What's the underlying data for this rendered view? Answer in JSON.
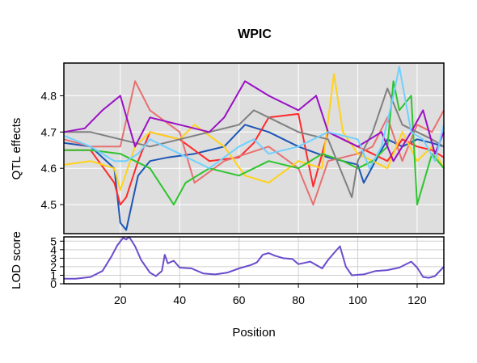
{
  "chart_data": {
    "type": "line",
    "title": "WPIC",
    "xlabel": "Position",
    "xlim": [
      1,
      129
    ],
    "x_ticks": [
      20,
      40,
      60,
      80,
      100,
      120
    ],
    "top_panel": {
      "ylabel": "QTL effects",
      "ylim": [
        4.42,
        4.89
      ],
      "y_ticks": [
        4.5,
        4.6,
        4.7,
        4.8
      ],
      "background": "#dedede",
      "grid": true,
      "series": [
        {
          "color": "#1c56b5",
          "x": [
            1,
            10,
            18,
            20,
            22,
            26,
            30,
            36,
            45,
            55,
            62,
            70,
            80,
            90,
            100,
            102,
            106,
            110,
            115,
            120,
            125,
            129
          ],
          "y": [
            4.67,
            4.66,
            4.6,
            4.45,
            4.43,
            4.58,
            4.62,
            4.63,
            4.64,
            4.66,
            4.72,
            4.7,
            4.66,
            4.63,
            4.61,
            4.56,
            4.62,
            4.68,
            4.66,
            4.68,
            4.67,
            4.66
          ]
        },
        {
          "color": "#ff2a2a",
          "x": [
            1,
            10,
            18,
            20,
            22,
            26,
            30,
            40,
            50,
            60,
            65,
            70,
            80,
            85,
            90,
            95,
            100,
            105,
            110,
            115,
            120,
            125,
            129
          ],
          "y": [
            4.65,
            4.65,
            4.56,
            4.5,
            4.52,
            4.62,
            4.7,
            4.68,
            4.62,
            4.63,
            4.67,
            4.74,
            4.75,
            4.55,
            4.7,
            4.68,
            4.66,
            4.64,
            4.62,
            4.68,
            4.66,
            4.65,
            4.63
          ]
        },
        {
          "color": "#e87070",
          "x": [
            1,
            10,
            20,
            25,
            30,
            40,
            45,
            55,
            70,
            80,
            85,
            90,
            100,
            105,
            110,
            115,
            120,
            125,
            129
          ],
          "y": [
            4.68,
            4.66,
            4.66,
            4.84,
            4.76,
            4.7,
            4.56,
            4.62,
            4.66,
            4.6,
            4.5,
            4.62,
            4.64,
            4.66,
            4.74,
            4.62,
            4.72,
            4.7,
            4.76
          ]
        },
        {
          "color": "#ffd21a",
          "x": [
            1,
            10,
            18,
            20,
            25,
            30,
            40,
            45,
            55,
            62,
            70,
            80,
            88,
            92,
            95,
            100,
            110,
            115,
            120,
            125,
            129
          ],
          "y": [
            4.61,
            4.62,
            4.6,
            4.54,
            4.66,
            4.7,
            4.68,
            4.72,
            4.66,
            4.58,
            4.56,
            4.62,
            4.6,
            4.86,
            4.7,
            4.64,
            4.6,
            4.7,
            4.62,
            4.66,
            4.6
          ]
        },
        {
          "color": "#2fc42f",
          "x": [
            1,
            10,
            20,
            30,
            38,
            42,
            50,
            60,
            70,
            80,
            88,
            95,
            100,
            105,
            110,
            112,
            114,
            118,
            120,
            125,
            129
          ],
          "y": [
            4.65,
            4.65,
            4.64,
            4.6,
            4.5,
            4.56,
            4.6,
            4.58,
            4.62,
            4.6,
            4.64,
            4.62,
            4.6,
            4.62,
            4.66,
            4.84,
            4.76,
            4.8,
            4.5,
            4.64,
            4.6
          ]
        },
        {
          "color": "#808080",
          "x": [
            1,
            10,
            20,
            30,
            40,
            50,
            60,
            65,
            70,
            80,
            90,
            95,
            98,
            100,
            105,
            110,
            115,
            120,
            125,
            129
          ],
          "y": [
            4.7,
            4.7,
            4.68,
            4.66,
            4.68,
            4.7,
            4.72,
            4.76,
            4.74,
            4.7,
            4.68,
            4.58,
            4.52,
            4.62,
            4.7,
            4.82,
            4.72,
            4.7,
            4.68,
            4.66
          ]
        },
        {
          "color": "#9a10c4",
          "x": [
            1,
            8,
            14,
            20,
            25,
            30,
            40,
            50,
            55,
            62,
            66,
            70,
            80,
            86,
            90,
            100,
            108,
            112,
            118,
            122,
            126,
            129
          ],
          "y": [
            4.7,
            4.71,
            4.76,
            4.8,
            4.66,
            4.74,
            4.72,
            4.7,
            4.74,
            4.84,
            4.82,
            4.8,
            4.76,
            4.8,
            4.7,
            4.66,
            4.7,
            4.62,
            4.7,
            4.76,
            4.64,
            4.7
          ]
        },
        {
          "color": "#70d0ff",
          "x": [
            1,
            10,
            18,
            22,
            26,
            30,
            40,
            50,
            60,
            65,
            70,
            80,
            90,
            100,
            104,
            108,
            112,
            114,
            118,
            122,
            126,
            129
          ],
          "y": [
            4.69,
            4.66,
            4.62,
            4.62,
            4.64,
            4.68,
            4.64,
            4.6,
            4.66,
            4.68,
            4.64,
            4.66,
            4.7,
            4.68,
            4.6,
            4.66,
            4.8,
            4.88,
            4.7,
            4.68,
            4.62,
            4.72
          ]
        }
      ]
    },
    "bottom_panel": {
      "ylabel": "LOD score",
      "ylim": [
        0,
        5.5
      ],
      "y_ticks": [
        0,
        1,
        2,
        3,
        4,
        5
      ],
      "grid": true,
      "series": [
        {
          "color": "#6a4ccc",
          "x": [
            1,
            5,
            10,
            14,
            17,
            19,
            21,
            22,
            23,
            25,
            27,
            30,
            32,
            34,
            35,
            36,
            38,
            40,
            44,
            48,
            52,
            56,
            60,
            64,
            66,
            68,
            70,
            72,
            75,
            78,
            80,
            84,
            88,
            90,
            92,
            94,
            96,
            98,
            102,
            106,
            110,
            114,
            118,
            120,
            122,
            124,
            126,
            129
          ],
          "y": [
            0.6,
            0.6,
            0.8,
            1.5,
            3.2,
            4.5,
            5.4,
            5.2,
            5.5,
            4.4,
            2.8,
            1.3,
            0.9,
            1.5,
            3.4,
            2.4,
            2.7,
            1.9,
            1.8,
            1.2,
            1.1,
            1.3,
            1.8,
            2.2,
            2.5,
            3.4,
            3.6,
            3.3,
            3.0,
            2.9,
            2.3,
            2.6,
            1.8,
            2.8,
            3.6,
            4.4,
            2.0,
            1.0,
            1.1,
            1.5,
            1.6,
            1.9,
            2.6,
            1.9,
            0.8,
            0.7,
            0.9,
            2.0
          ]
        }
      ]
    }
  }
}
